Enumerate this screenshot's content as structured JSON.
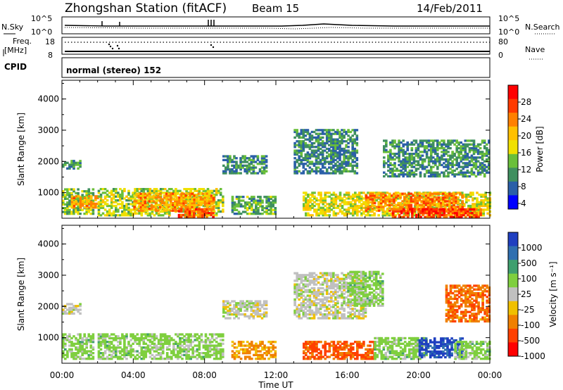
{
  "header": {
    "station": "Zhongshan Station (fitACF)",
    "beam": "Beam 15",
    "date": "14/Feb/2011"
  },
  "top_panels": {
    "nsky_label": "N.Sky",
    "nsearch_label": "N.Search",
    "freq_label_1": "Freq.",
    "freq_label_2": "[MHz]",
    "nave_label": "Nave",
    "cpid_label": "CPID",
    "cpid_text": "normal (stereo) 152",
    "noise_ticks_left": [
      "10^5",
      "10^0"
    ],
    "noise_ticks_right": [
      "10^5",
      "10^0"
    ],
    "freq_ticks_left": [
      "18",
      "8"
    ],
    "freq_ticks_right": [
      "80",
      "0"
    ]
  },
  "colorbars": {
    "power": {
      "label": "Power [dB]",
      "ticks": [
        "28",
        "24",
        "20",
        "16",
        "12",
        "8",
        "4"
      ],
      "colors": [
        "#ff0000",
        "#ff3a00",
        "#ff8000",
        "#ffc000",
        "#f0e000",
        "#6abf3a",
        "#3f8f5f",
        "#2a5fa8",
        "#0000ff"
      ]
    },
    "velocity": {
      "label": "Velocity [m s⁻¹]",
      "ticks": [
        "1000",
        "500",
        "100",
        "25",
        "-25",
        "-100",
        "-500",
        "-1000"
      ],
      "colors": [
        "#1f3fc0",
        "#2f6fb0",
        "#3f9f6f",
        "#7fcf3f",
        "#c0c0c0",
        "#f0c000",
        "#f08000",
        "#ff4000",
        "#ff0000"
      ]
    }
  },
  "chart_data": [
    {
      "type": "heatmap",
      "title": "Power",
      "xlabel": "Time UT",
      "ylabel": "Slant Range [km]",
      "xticks": [
        "00:00",
        "04:00",
        "08:00",
        "12:00",
        "16:00",
        "20:00",
        "00:00"
      ],
      "yticks": [
        "1000",
        "2000",
        "3000",
        "4000"
      ],
      "xlim": [
        0,
        24
      ],
      "ylim": [
        180,
        4600
      ],
      "colorbar_range": [
        0,
        32
      ],
      "regions": [
        {
          "t0": 0.0,
          "t1": 1.8,
          "r0": 300,
          "r1": 1100,
          "level": 12
        },
        {
          "t0": 0.5,
          "t1": 2.0,
          "r0": 500,
          "r1": 900,
          "level": 22
        },
        {
          "t0": 0.0,
          "t1": 1.0,
          "r0": 1750,
          "r1": 2050,
          "level": 9
        },
        {
          "t0": 2.0,
          "t1": 9.0,
          "r0": 250,
          "r1": 1100,
          "level": 14
        },
        {
          "t0": 4.0,
          "t1": 8.5,
          "r0": 400,
          "r1": 1000,
          "level": 22
        },
        {
          "t0": 6.5,
          "t1": 8.5,
          "r0": 200,
          "r1": 450,
          "level": 27
        },
        {
          "t0": 9.0,
          "t1": 11.5,
          "r0": 1600,
          "r1": 2200,
          "level": 8
        },
        {
          "t0": 9.5,
          "t1": 12.0,
          "r0": 300,
          "r1": 900,
          "level": 10
        },
        {
          "t0": 13.0,
          "t1": 16.5,
          "r0": 1600,
          "r1": 3000,
          "level": 7
        },
        {
          "t0": 13.5,
          "t1": 24.0,
          "r0": 250,
          "r1": 1000,
          "level": 16
        },
        {
          "t0": 17.0,
          "t1": 22.5,
          "r0": 400,
          "r1": 1000,
          "level": 24
        },
        {
          "t0": 18.5,
          "t1": 23.5,
          "r0": 200,
          "r1": 450,
          "level": 28
        },
        {
          "t0": 18.0,
          "t1": 24.0,
          "r0": 1500,
          "r1": 2700,
          "level": 8
        }
      ]
    },
    {
      "type": "heatmap",
      "title": "Velocity",
      "xlabel": "Time UT",
      "ylabel": "Slant Range [km]",
      "xticks": [
        "00:00",
        "04:00",
        "08:00",
        "12:00",
        "16:00",
        "20:00",
        "00:00"
      ],
      "yticks": [
        "1000",
        "2000",
        "3000",
        "4000"
      ],
      "xlim": [
        0,
        24
      ],
      "ylim": [
        180,
        4600
      ],
      "colorbar_range": [
        -1000,
        1000
      ],
      "regions": [
        {
          "t0": 0.0,
          "t1": 1.8,
          "r0": 300,
          "r1": 1100,
          "level": 100
        },
        {
          "t0": 0.0,
          "t1": 1.0,
          "r0": 1750,
          "r1": 2100,
          "level": 0
        },
        {
          "t0": 2.0,
          "t1": 9.0,
          "r0": 300,
          "r1": 1100,
          "level": 100
        },
        {
          "t0": 9.5,
          "t1": 12.0,
          "r0": 300,
          "r1": 900,
          "level": -200
        },
        {
          "t0": 9.0,
          "t1": 11.5,
          "r0": 1600,
          "r1": 2200,
          "level": 0
        },
        {
          "t0": 13.0,
          "t1": 17.0,
          "r0": 1600,
          "r1": 3100,
          "level": 0
        },
        {
          "t0": 13.5,
          "t1": 17.5,
          "r0": 300,
          "r1": 900,
          "level": -500
        },
        {
          "t0": 16.0,
          "t1": 18.0,
          "r0": 2000,
          "r1": 3100,
          "level": 100
        },
        {
          "t0": 17.5,
          "t1": 20.5,
          "r0": 300,
          "r1": 1000,
          "level": 100
        },
        {
          "t0": 20.0,
          "t1": 22.5,
          "r0": 350,
          "r1": 1000,
          "level": 1000
        },
        {
          "t0": 22.0,
          "t1": 24.0,
          "r0": 300,
          "r1": 900,
          "level": 100
        },
        {
          "t0": 21.5,
          "t1": 24.0,
          "r0": 1500,
          "r1": 2700,
          "level": -400
        }
      ]
    }
  ]
}
